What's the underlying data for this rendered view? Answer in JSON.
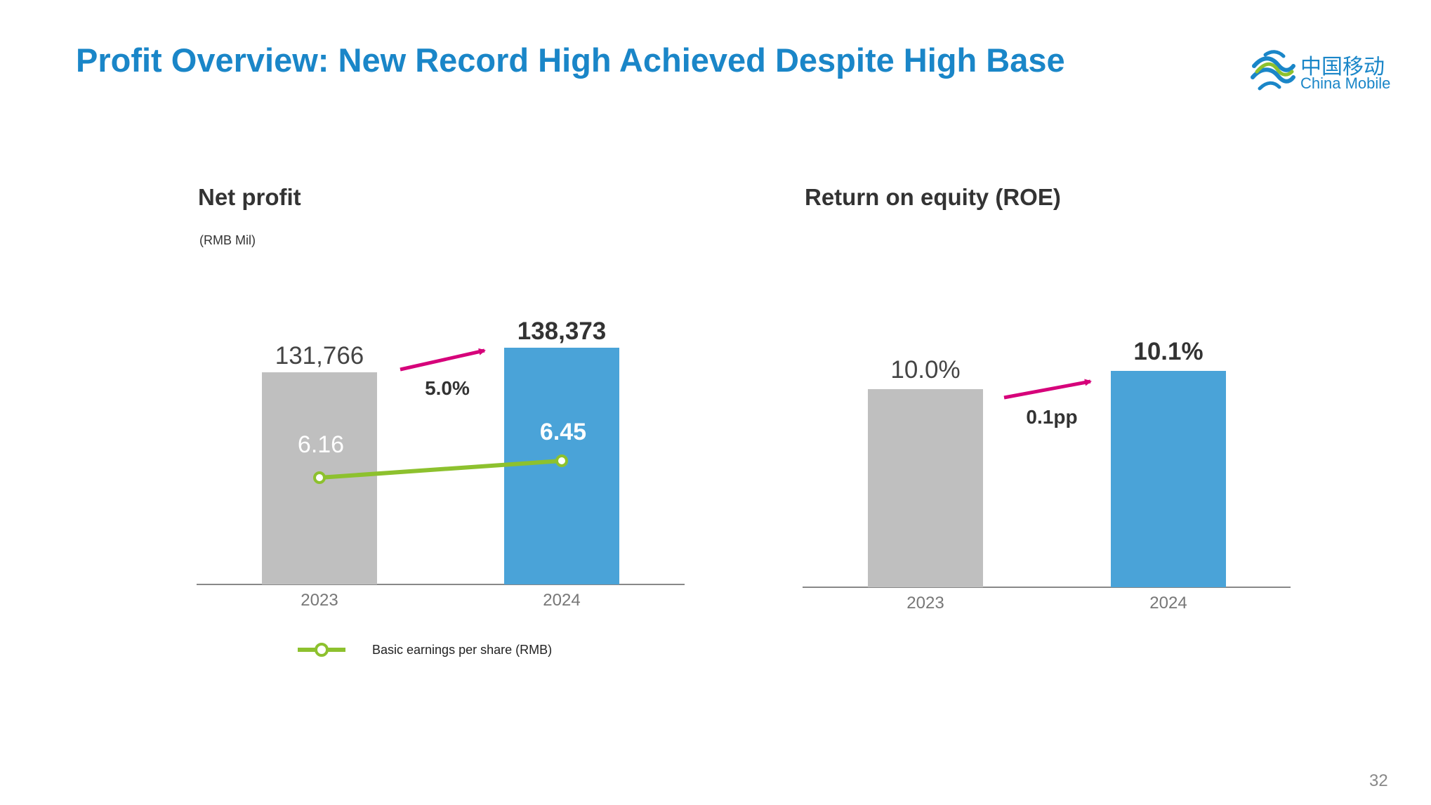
{
  "slide": {
    "title": "Profit Overview: New Record High Achieved Despite High Base",
    "page_number": "32"
  },
  "logo": {
    "cn": "中国移动",
    "en": "China Mobile"
  },
  "colors": {
    "accent_blue": "#1a86c8",
    "bar_gray": "#bfbfbf",
    "bar_blue": "#4aa3d8",
    "eps_line": "#8dc12e",
    "arrow_magenta": "#d6007a"
  },
  "net_profit": {
    "title": "Net profit",
    "unit": "(RMB Mil)",
    "growth_label": "5.0%",
    "legend_label": "Basic earnings per share (RMB)"
  },
  "roe": {
    "title": "Return on equity (ROE)",
    "growth_label": "0.1pp"
  },
  "chart_data": [
    {
      "type": "bar",
      "title": "Net profit",
      "ylabel": "(RMB Mil)",
      "categories": [
        "2023",
        "2024"
      ],
      "series": [
        {
          "values": [
            131766,
            138373
          ],
          "value_labels": [
            "131,766",
            "138,373"
          ]
        },
        {
          "name": "Basic earnings per share (RMB)",
          "type": "line",
          "values": [
            6.16,
            6.45
          ],
          "value_labels": [
            "6.16",
            "6.45"
          ]
        }
      ],
      "annotation": "5.0%",
      "legend": "bottom"
    },
    {
      "type": "bar",
      "title": "Return on equity (ROE)",
      "categories": [
        "2023",
        "2024"
      ],
      "series": [
        {
          "values": [
            10.0,
            10.1
          ],
          "value_labels": [
            "10.0%",
            "10.1%"
          ]
        }
      ],
      "annotation": "0.1pp"
    }
  ]
}
